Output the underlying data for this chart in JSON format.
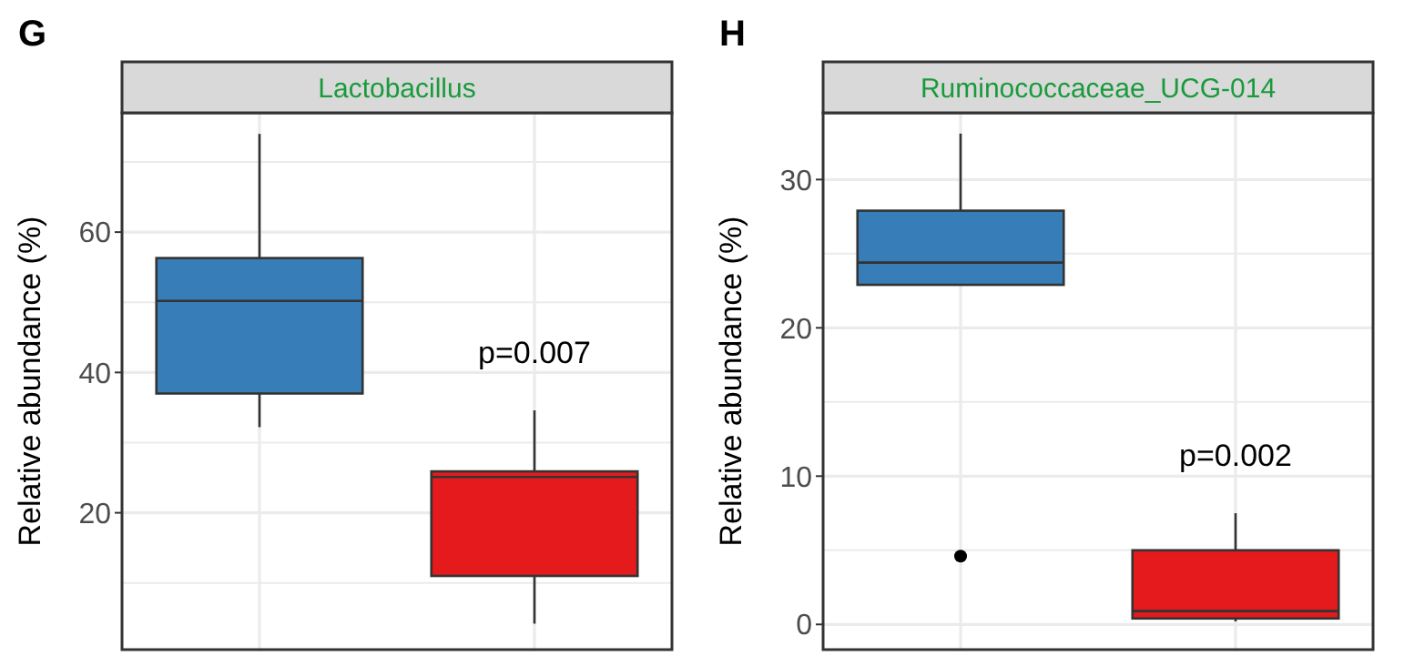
{
  "chart_data": [
    {
      "type": "box",
      "title": "Lactobacillus",
      "ylabel": "Relative abundance (%)",
      "categories": [
        null,
        null
      ],
      "colors": [
        "#377eb8",
        "#e41a1c"
      ],
      "boxes": [
        {
          "low": 32.2,
          "q1": 37.0,
          "median": 50.2,
          "q3": 56.3,
          "high": 74.0
        },
        {
          "low": 4.2,
          "q1": 11.0,
          "median": 25.1,
          "q3": 25.9,
          "high": 34.6
        }
      ],
      "ylim": [
        0.5,
        77
      ],
      "yticks": [
        {
          "value": 10,
          "label": null
        },
        20,
        {
          "value": 30,
          "label": null
        },
        40,
        {
          "value": 50,
          "label": null
        },
        60,
        {
          "value": 70,
          "label": null
        }
      ],
      "grid": true,
      "annotations": [
        "G",
        "p=0.007"
      ]
    },
    {
      "type": "box",
      "title": "Ruminococcaceae_UCG-014",
      "ylabel": "Relative abundance (%)",
      "categories": [
        null,
        null
      ],
      "colors": [
        "#377eb8",
        "#e41a1c"
      ],
      "boxes": [
        {
          "low": 22.9,
          "q1": 22.9,
          "median": 24.4,
          "q3": 27.9,
          "high": 33.1,
          "outliers": [
            4.6
          ]
        },
        {
          "low": 0.2,
          "q1": 0.4,
          "median": 0.9,
          "q3": 5.0,
          "high": 7.5
        }
      ],
      "ylim": [
        -1.7,
        34.5
      ],
      "yticks": [
        0,
        {
          "value": 5,
          "label": null
        },
        10,
        {
          "value": 15,
          "label": null
        },
        20,
        {
          "value": 25,
          "label": null
        },
        30
      ],
      "grid": true,
      "annotations": [
        "H",
        "p=0.002"
      ]
    }
  ]
}
